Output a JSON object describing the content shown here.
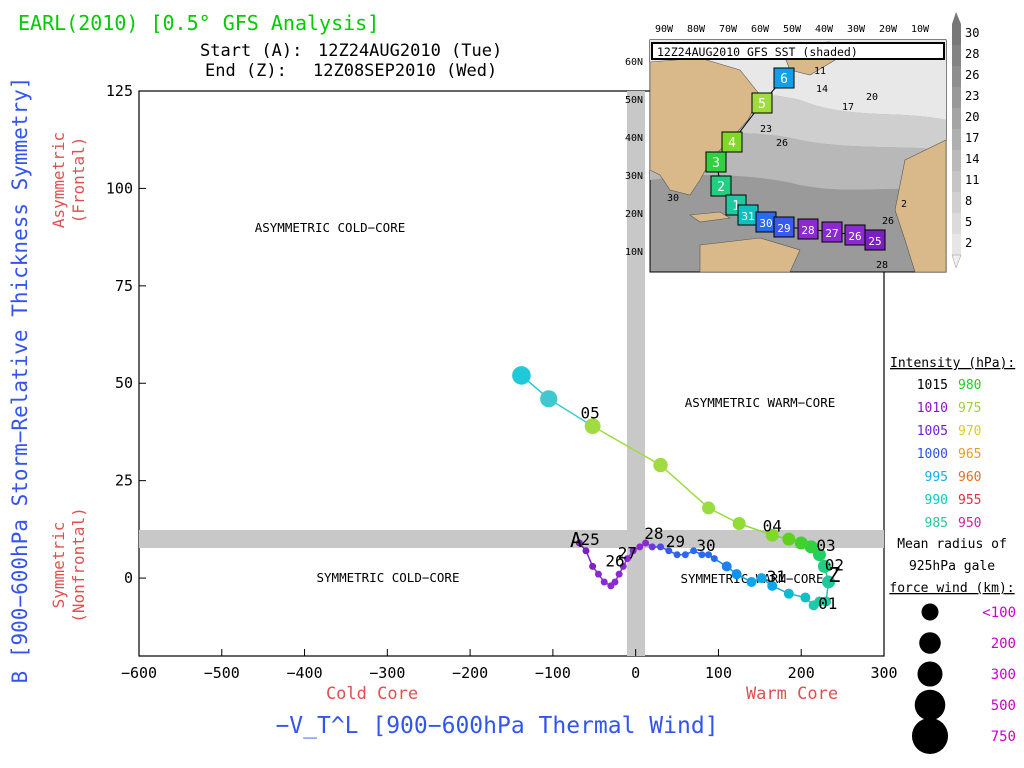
{
  "header": {
    "title": "EARL(2010) [0.5° GFS Analysis]",
    "start_label": "Start (A):",
    "start_value": "12Z24AUG2010 (Tue)",
    "end_label": "End (Z):",
    "end_value": "12Z08SEP2010 (Wed)"
  },
  "colors": {
    "title": "#00cc00",
    "axis_label": "#3355ee",
    "side_label": "#e05050",
    "purple_label": "#cc00cc",
    "grey_band": "#c8c8c8",
    "land": "#d9b98a",
    "track_line_cold": "#8c2fd0",
    "track_line_warm": "#00b5b5",
    "track_line_late": "#a0dc40"
  },
  "chart_data": {
    "type": "scatter",
    "x_axis": {
      "label": "−V_T^L [900−600hPa Thermal Wind]",
      "range": [
        -600,
        300
      ],
      "ticks": [
        -600,
        -500,
        -400,
        -300,
        -200,
        -100,
        0,
        100,
        200,
        300
      ],
      "tick_labels": [
        "−600",
        "−500",
        "−400",
        "−300",
        "−200",
        "−100",
        "0",
        "100",
        "200",
        "300"
      ],
      "left_note": "Cold Core",
      "right_note": "Warm Core"
    },
    "y_axis": {
      "label": "B [900−600hPa Storm−Relative Thickness Symmetry]",
      "range": [
        -20,
        125
      ],
      "ticks": [
        0,
        25,
        50,
        75,
        100,
        125
      ],
      "tick_labels": [
        "0",
        "25",
        "50",
        "75",
        "100",
        "125"
      ],
      "top_note": [
        "Asymmetric",
        "(Frontal)"
      ],
      "bottom_note": [
        "Symmetric",
        "(Nonfrontal)"
      ]
    },
    "quadrant_labels": [
      "ASYMMETRIC COLD−CORE",
      "ASYMMETRIC WARM−CORE",
      "SYMMETRIC COLD−CORE",
      "SYMMETRIC WARM−CORE"
    ],
    "thresholds": {
      "x": 0,
      "y": 10
    },
    "track": [
      {
        "x": -68,
        "y": 9,
        "c": "#7a1fc0"
      },
      {
        "x": -60,
        "y": 7,
        "c": "#7a1fc0"
      },
      {
        "x": -52,
        "y": 3,
        "c": "#8020c8"
      },
      {
        "x": -45,
        "y": 1,
        "c": "#8a2ad0"
      },
      {
        "x": -38,
        "y": -1,
        "c": "#8a2ad0"
      },
      {
        "x": -30,
        "y": -2,
        "c": "#8a2ad0"
      },
      {
        "x": -25,
        "y": -1,
        "c": "#8a2ad0"
      },
      {
        "x": -20,
        "y": 1,
        "c": "#8a2ad0"
      },
      {
        "x": -15,
        "y": 3,
        "c": "#8a2ad0"
      },
      {
        "x": -10,
        "y": 5,
        "c": "#8a2ad0"
      },
      {
        "x": -3,
        "y": 7,
        "c": "#8a2ad0"
      },
      {
        "x": 5,
        "y": 8,
        "c": "#8a2ad0"
      },
      {
        "x": 12,
        "y": 9,
        "c": "#8a2ad0"
      },
      {
        "x": 20,
        "y": 8,
        "c": "#6a3ae0"
      },
      {
        "x": 30,
        "y": 8,
        "c": "#4a4ae8"
      },
      {
        "x": 40,
        "y": 7,
        "c": "#3a5aee"
      },
      {
        "x": 50,
        "y": 6,
        "c": "#3060ee"
      },
      {
        "x": 60,
        "y": 6,
        "c": "#2a6af0"
      },
      {
        "x": 70,
        "y": 7,
        "c": "#2a6af0"
      },
      {
        "x": 80,
        "y": 6,
        "c": "#2a6af0"
      },
      {
        "x": 88,
        "y": 6,
        "c": "#2a6af0"
      },
      {
        "x": 95,
        "y": 5,
        "c": "#2a6af0"
      },
      {
        "x": 110,
        "y": 3,
        "c": "#1f80f0"
      },
      {
        "x": 122,
        "y": 1,
        "c": "#1090f0"
      },
      {
        "x": 140,
        "y": -1,
        "c": "#10a5e8"
      },
      {
        "x": 152,
        "y": 0,
        "c": "#10a5e8"
      },
      {
        "x": 165,
        "y": -2,
        "c": "#10a5e8"
      },
      {
        "x": 185,
        "y": -4,
        "c": "#10b8d0"
      },
      {
        "x": 205,
        "y": -5,
        "c": "#10c0c0"
      },
      {
        "x": 215,
        "y": -7,
        "c": "#20c8b0"
      },
      {
        "x": 222,
        "y": -6,
        "c": "#20c8a0"
      },
      {
        "x": 230,
        "y": -6,
        "c": "#20c8a0"
      },
      {
        "x": 233,
        "y": -1,
        "c": "#20c8a0"
      },
      {
        "x": 228,
        "y": 3,
        "c": "#20d080"
      },
      {
        "x": 222,
        "y": 6,
        "c": "#20d060"
      },
      {
        "x": 212,
        "y": 8,
        "c": "#30d040"
      },
      {
        "x": 200,
        "y": 9,
        "c": "#40d030"
      },
      {
        "x": 185,
        "y": 10,
        "c": "#60d020"
      },
      {
        "x": 165,
        "y": 11,
        "c": "#80d828"
      },
      {
        "x": 125,
        "y": 14,
        "c": "#90dc38"
      },
      {
        "x": 88,
        "y": 18,
        "c": "#98dc40"
      },
      {
        "x": 30,
        "y": 29,
        "c": "#a0dc40"
      },
      {
        "x": -52,
        "y": 39,
        "c": "#a0dc40"
      },
      {
        "x": -105,
        "y": 46,
        "c": "#40c8d0"
      },
      {
        "x": -138,
        "y": 52,
        "c": "#20c8d8"
      }
    ],
    "point_labels": [
      {
        "text": "25",
        "x": -55,
        "y": 8.5
      },
      {
        "text": "26",
        "x": -25,
        "y": 3
      },
      {
        "text": "27",
        "x": -10,
        "y": 5
      },
      {
        "text": "28",
        "x": 22,
        "y": 10
      },
      {
        "text": "29",
        "x": 48,
        "y": 8
      },
      {
        "text": "30",
        "x": 85,
        "y": 7
      },
      {
        "text": "31",
        "x": 170,
        "y": -1
      },
      {
        "text": "01",
        "x": 232,
        "y": -8
      },
      {
        "text": "02",
        "x": 240,
        "y": 2
      },
      {
        "text": "03",
        "x": 230,
        "y": 7
      },
      {
        "text": "04",
        "x": 165,
        "y": 12
      },
      {
        "text": "05",
        "x": -55,
        "y": 41
      },
      {
        "text": "A",
        "x": -72,
        "y": 8
      },
      {
        "text": "Z",
        "x": 240,
        "y": -1
      }
    ]
  },
  "inset": {
    "title": "12Z24AUG2010 GFS SST (shaded)",
    "lon_labels": [
      "90W",
      "80W",
      "70W",
      "60W",
      "50W",
      "40W",
      "30W",
      "20W",
      "10W"
    ],
    "lat_labels": [
      "60N",
      "50N",
      "40N",
      "30N",
      "20N",
      "10N"
    ],
    "colorbar_labels": [
      "30",
      "28",
      "26",
      "23",
      "20",
      "17",
      "14",
      "11",
      "8",
      "5",
      "2"
    ],
    "contour_labels": [
      "11",
      "14",
      "17",
      "20",
      "23",
      "26",
      "30",
      "26",
      "28",
      "2"
    ],
    "day_boxes": [
      {
        "label": "6",
        "color": "#10a0e8"
      },
      {
        "label": "5",
        "color": "#a0dc40"
      },
      {
        "label": "4",
        "color": "#80d828"
      },
      {
        "label": "3",
        "color": "#30d040"
      },
      {
        "label": "2",
        "color": "#20d080"
      },
      {
        "label": "1",
        "color": "#20c8a0"
      },
      {
        "label": "31",
        "color": "#10c0c0"
      },
      {
        "label": "30",
        "color": "#2a6af0"
      },
      {
        "label": "29",
        "color": "#3a5aee"
      },
      {
        "label": "28",
        "color": "#8a2ad0"
      },
      {
        "label": "27",
        "color": "#8a2ad0"
      },
      {
        "label": "26",
        "color": "#8a2ad0"
      },
      {
        "label": "25",
        "color": "#7a1fc0"
      }
    ]
  },
  "legend": {
    "intensity_title": "Intensity (hPa):",
    "intensity_rows": [
      {
        "left": "1015",
        "left_color": "#000000",
        "right": "980",
        "right_color": "#20d020"
      },
      {
        "left": "1010",
        "left_color": "#9010c8",
        "right": "975",
        "right_color": "#a0d040"
      },
      {
        "left": "1005",
        "left_color": "#7020d8",
        "right": "970",
        "right_color": "#d8d020"
      },
      {
        "left": "1000",
        "left_color": "#3050e8",
        "right": "965",
        "right_color": "#e0a020"
      },
      {
        "left": "995",
        "left_color": "#10b0e8",
        "right": "960",
        "right_color": "#e07020"
      },
      {
        "left": "990",
        "left_color": "#10c8c0",
        "right": "955",
        "right_color": "#e03040"
      },
      {
        "left": "985",
        "left_color": "#20c8a0",
        "right": "950",
        "right_color": "#d020a0"
      }
    ],
    "radius_title_lines": [
      "Mean radius of",
      "925hPa gale",
      "force wind (km):"
    ],
    "radius_rows": [
      {
        "label": "<100",
        "size": 100
      },
      {
        "label": "200",
        "size": 200
      },
      {
        "label": "300",
        "size": 300
      },
      {
        "label": "500",
        "size": 500
      },
      {
        "label": "750",
        "size": 750
      }
    ]
  }
}
